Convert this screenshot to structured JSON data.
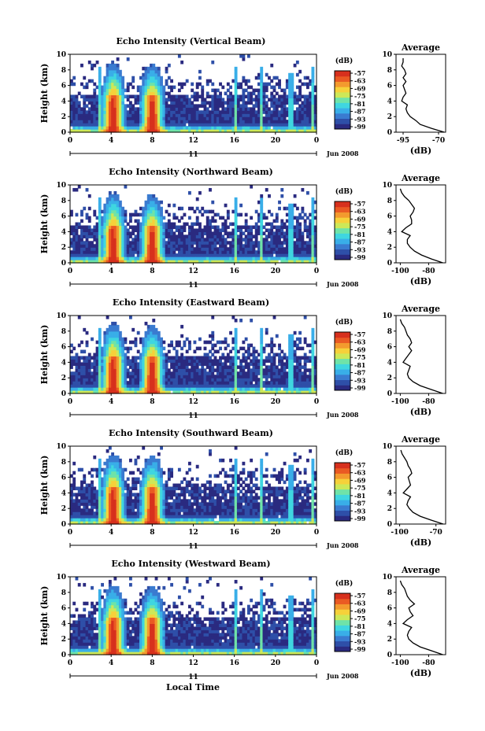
{
  "figure": {
    "xlabel_bottom": "Local Time"
  },
  "colors": {
    "colormap": [
      "#2a2a80",
      "#2e4fa8",
      "#3a7bd0",
      "#39aee8",
      "#3fd6e0",
      "#6fe3a8",
      "#cde858",
      "#f6d13a",
      "#f39a2e",
      "#ea5a23",
      "#d7301d"
    ],
    "average_line": "#000000",
    "background": "#ffffff"
  },
  "chart_data": [
    {
      "type": "heatmap",
      "title": "Echo Intensity (Vertical Beam)",
      "ylabel": "Height (km)",
      "ylim": [
        0,
        10
      ],
      "y_ticks": [
        "0",
        "2",
        "4",
        "6",
        "8",
        "10"
      ],
      "x_ticks": [
        "0",
        "4",
        "8",
        "12",
        "16",
        "20",
        "0"
      ],
      "xlim": [
        0,
        24
      ],
      "date_tick": "11",
      "date_label": "Jun 2008",
      "colorbar": {
        "label": "(dB)",
        "ticks": [
          "-57",
          "-63",
          "-69",
          "-75",
          "-81",
          "-87",
          "-93",
          "-99"
        ]
      },
      "average": {
        "title": "Average",
        "xlabel": "(dB)",
        "x_ticks": [
          "-95",
          "-70"
        ],
        "xlim": [
          -100,
          -65
        ],
        "y_ticks": [
          "0",
          "2",
          "4",
          "6",
          "8",
          "10"
        ],
        "heights": [
          0,
          0.5,
          1,
          1.5,
          2,
          2.5,
          3,
          3.5,
          4,
          4.5,
          5,
          5.5,
          6,
          6.5,
          7,
          7.5,
          8,
          8.5,
          9,
          9.5
        ],
        "values": [
          -66,
          -75,
          -83,
          -86,
          -90,
          -92,
          -93,
          -92,
          -96,
          -95,
          -93,
          -94,
          -95,
          -93,
          -95,
          -93,
          -94,
          -96,
          -95,
          -95
        ]
      }
    },
    {
      "type": "heatmap",
      "title": "Echo Intensity (Northward Beam)",
      "ylabel": "Height (km)",
      "ylim": [
        0,
        10
      ],
      "y_ticks": [
        "0",
        "2",
        "4",
        "6",
        "8",
        "10"
      ],
      "x_ticks": [
        "0",
        "4",
        "8",
        "12",
        "16",
        "20",
        "0"
      ],
      "xlim": [
        0,
        24
      ],
      "date_tick": "11",
      "date_label": "Jun 2008",
      "colorbar": {
        "label": "(dB)",
        "ticks": [
          "-57",
          "-63",
          "-69",
          "-75",
          "-81",
          "-87",
          "-93",
          "-99"
        ]
      },
      "average": {
        "title": "Average",
        "xlabel": "(dB)",
        "x_ticks": [
          "-100",
          "-80"
        ],
        "xlim": [
          -103,
          -68
        ],
        "y_ticks": [
          "0",
          "2",
          "4",
          "6",
          "8",
          "10"
        ],
        "heights": [
          0,
          0.5,
          1,
          1.5,
          2,
          2.5,
          3,
          3.5,
          4,
          4.5,
          5,
          5.5,
          6,
          6.5,
          7,
          7.5,
          8,
          8.5,
          9,
          9.5
        ],
        "values": [
          -70,
          -78,
          -85,
          -90,
          -93,
          -95,
          -95,
          -93,
          -99,
          -96,
          -92,
          -92,
          -93,
          -91,
          -90,
          -92,
          -94,
          -97,
          -99,
          -100
        ]
      }
    },
    {
      "type": "heatmap",
      "title": "Echo Intensity (Eastward Beam)",
      "ylabel": "Height (km)",
      "ylim": [
        0,
        10
      ],
      "y_ticks": [
        "0",
        "2",
        "4",
        "6",
        "8",
        "10"
      ],
      "x_ticks": [
        "0",
        "4",
        "8",
        "12",
        "16",
        "20",
        "0"
      ],
      "xlim": [
        0,
        24
      ],
      "date_tick": "11",
      "date_label": "Jun 2008",
      "colorbar": {
        "label": "(dB)",
        "ticks": [
          "-57",
          "-63",
          "-69",
          "-75",
          "-81",
          "-87",
          "-93",
          "-99"
        ]
      },
      "average": {
        "title": "Average",
        "xlabel": "(dB)",
        "x_ticks": [
          "-100",
          "-80"
        ],
        "xlim": [
          -103,
          -68
        ],
        "y_ticks": [
          "0",
          "2",
          "4",
          "6",
          "8",
          "10"
        ],
        "heights": [
          0,
          0.5,
          1,
          1.5,
          2,
          2.5,
          3,
          3.5,
          4,
          4.5,
          5,
          5.5,
          6,
          6.5,
          7,
          7.5,
          8,
          8.5,
          9,
          9.5
        ],
        "values": [
          -70,
          -78,
          -86,
          -91,
          -94,
          -95,
          -94,
          -93,
          -98,
          -96,
          -94,
          -92,
          -94,
          -92,
          -93,
          -95,
          -96,
          -97,
          -99,
          -100
        ]
      }
    },
    {
      "type": "heatmap",
      "title": "Echo Intensity (Southward Beam)",
      "ylabel": "Height (km)",
      "ylim": [
        0,
        10
      ],
      "y_ticks": [
        "0",
        "2",
        "4",
        "6",
        "8",
        "10"
      ],
      "x_ticks": [
        "0",
        "4",
        "8",
        "12",
        "16",
        "20",
        "0"
      ],
      "xlim": [
        0,
        24
      ],
      "date_tick": "11",
      "date_label": "Jun 2008",
      "colorbar": {
        "label": "(dB)",
        "ticks": [
          "-57",
          "-63",
          "-69",
          "-75",
          "-81",
          "-87",
          "-93",
          "-99"
        ]
      },
      "average": {
        "title": "Average",
        "xlabel": "(dB)",
        "x_ticks": [
          "-100",
          "-70"
        ],
        "xlim": [
          -103,
          -62
        ],
        "y_ticks": [
          "0",
          "2",
          "4",
          "6",
          "8",
          "10"
        ],
        "heights": [
          0,
          0.5,
          1,
          1.5,
          2,
          2.5,
          3,
          3.5,
          4,
          4.5,
          5,
          5.5,
          6,
          6.5,
          7,
          7.5,
          8,
          8.5,
          9,
          9.5
        ],
        "values": [
          -64,
          -74,
          -83,
          -89,
          -92,
          -94,
          -93,
          -91,
          -97,
          -94,
          -91,
          -92,
          -93,
          -90,
          -91,
          -93,
          -94,
          -96,
          -98,
          -99
        ]
      }
    },
    {
      "type": "heatmap",
      "title": "Echo Intensity (Westward Beam)",
      "ylabel": "Height (km)",
      "ylim": [
        0,
        10
      ],
      "y_ticks": [
        "0",
        "2",
        "4",
        "6",
        "8",
        "10"
      ],
      "x_ticks": [
        "0",
        "4",
        "8",
        "12",
        "16",
        "20",
        "0"
      ],
      "xlim": [
        0,
        24
      ],
      "date_tick": "11",
      "date_label": "Jun 2008",
      "colorbar": {
        "label": "(dB)",
        "ticks": [
          "-57",
          "-63",
          "-69",
          "-75",
          "-81",
          "-87",
          "-93",
          "-99"
        ]
      },
      "average": {
        "title": "Average",
        "xlabel": "(dB)",
        "x_ticks": [
          "-100",
          "-80"
        ],
        "xlim": [
          -103,
          -68
        ],
        "y_ticks": [
          "0",
          "2",
          "4",
          "6",
          "8",
          "10"
        ],
        "heights": [
          0,
          0.5,
          1,
          1.5,
          2,
          2.5,
          3,
          3.5,
          4,
          4.5,
          5,
          5.5,
          6,
          6.5,
          7,
          7.5,
          8,
          8.5,
          9,
          9.5
        ],
        "values": [
          -70,
          -78,
          -86,
          -91,
          -94,
          -95,
          -94,
          -92,
          -98,
          -95,
          -91,
          -93,
          -94,
          -90,
          -93,
          -95,
          -96,
          -97,
          -99,
          -100
        ]
      }
    }
  ]
}
